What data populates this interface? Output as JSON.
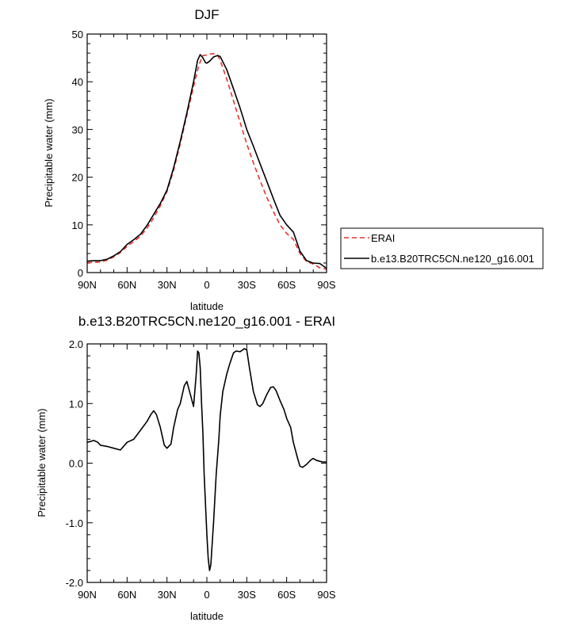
{
  "chart_data": [
    {
      "type": "line",
      "title": "DJF",
      "xlabel": "latitude",
      "ylabel": "Precipitable water (mm)",
      "xlim": [
        90,
        -90
      ],
      "ylim": [
        0,
        50
      ],
      "xticks": [
        90,
        60,
        30,
        0,
        -30,
        -60,
        -90
      ],
      "xtick_labels": [
        "90N",
        "60N",
        "30N",
        "0",
        "30S",
        "60S",
        "90S"
      ],
      "yticks": [
        0,
        10,
        20,
        30,
        40,
        50
      ],
      "ytick_labels": [
        "0",
        "10",
        "20",
        "30",
        "40",
        "50"
      ],
      "legend_position": "right",
      "series": [
        {
          "name": "ERAI",
          "color": "#e8322f",
          "dash": "dashed",
          "x": [
            90,
            80,
            75,
            70,
            65,
            60,
            55,
            50,
            45,
            40,
            35,
            30,
            25,
            20,
            15,
            10,
            6,
            3,
            0,
            -2,
            -5,
            -8,
            -10,
            -15,
            -20,
            -25,
            -30,
            -35,
            -40,
            -45,
            -50,
            -55,
            -60,
            -65,
            -70,
            -75,
            -80,
            -85,
            -90
          ],
          "y": [
            2.1,
            2.2,
            2.6,
            3.3,
            4.2,
            5.5,
            6.5,
            7.6,
            9.3,
            11.5,
            14.0,
            17.0,
            21.5,
            27.0,
            33.0,
            39.0,
            43.5,
            45.5,
            45.6,
            45.8,
            45.9,
            45.6,
            44.5,
            40.5,
            36.0,
            31.5,
            27.0,
            23.0,
            19.3,
            15.8,
            12.8,
            10.0,
            8.2,
            7.0,
            4.0,
            2.3,
            1.8,
            1.0,
            0.7
          ]
        },
        {
          "name": "b.e13.B20TRC5CN.ne120_g16.001",
          "color": "#000000",
          "dash": "solid",
          "x": [
            90,
            85,
            80,
            75,
            70,
            65,
            60,
            55,
            50,
            45,
            40,
            35,
            30,
            25,
            20,
            15,
            10,
            7,
            5,
            3,
            1,
            0,
            -2,
            -5,
            -8,
            -10,
            -15,
            -20,
            -25,
            -30,
            -35,
            -40,
            -45,
            -50,
            -55,
            -60,
            -65,
            -70,
            -75,
            -80,
            -85,
            -90
          ],
          "y": [
            2.4,
            2.5,
            2.5,
            2.8,
            3.5,
            4.4,
            5.9,
            6.9,
            8.0,
            9.9,
            12.2,
            14.5,
            17.3,
            22.0,
            27.5,
            33.5,
            40.0,
            44.5,
            45.7,
            45.0,
            44.0,
            43.9,
            44.3,
            45.2,
            45.5,
            45.3,
            42.5,
            38.5,
            34.5,
            30.0,
            26.5,
            22.8,
            19.2,
            15.5,
            12.0,
            10.0,
            8.5,
            4.5,
            2.5,
            2.0,
            1.9,
            0.9
          ]
        }
      ]
    },
    {
      "type": "line",
      "title": "b.e13.B20TRC5CN.ne120_g16.001 - ERAI",
      "xlabel": "latitude",
      "ylabel": "Precipitable water (mm)",
      "xlim": [
        90,
        -90
      ],
      "ylim": [
        -2.0,
        2.0
      ],
      "xticks": [
        90,
        60,
        30,
        0,
        -30,
        -60,
        -90
      ],
      "xtick_labels": [
        "90N",
        "60N",
        "30N",
        "0",
        "30S",
        "60S",
        "90S"
      ],
      "yticks": [
        2.0,
        1.0,
        0.0,
        -1.0,
        -2.0
      ],
      "ytick_labels": [
        "2.0",
        "1.0",
        "0.0",
        "-1.0",
        "-2.0"
      ],
      "series": [
        {
          "color": "#000000",
          "dash": "solid",
          "x": [
            90,
            85,
            82,
            80,
            75,
            70,
            65,
            60,
            55,
            50,
            45,
            42,
            40,
            38,
            35,
            32,
            30,
            27,
            25,
            22,
            20,
            17,
            15,
            13,
            10,
            8,
            7,
            6,
            5,
            4,
            3,
            2,
            0,
            -1,
            -2,
            -3,
            -5,
            -7,
            -9,
            -10,
            -12,
            -15,
            -17,
            -20,
            -22,
            -25,
            -27,
            -28,
            -30,
            -32,
            -35,
            -38,
            -40,
            -42,
            -45,
            -48,
            -50,
            -52,
            -55,
            -58,
            -60,
            -63,
            -65,
            -68,
            -70,
            -72,
            -75,
            -78,
            -80,
            -82,
            -85,
            -87,
            -90
          ],
          "y": [
            0.35,
            0.38,
            0.35,
            0.3,
            0.28,
            0.25,
            0.22,
            0.35,
            0.4,
            0.55,
            0.7,
            0.82,
            0.88,
            0.82,
            0.6,
            0.3,
            0.25,
            0.32,
            0.6,
            0.9,
            1.0,
            1.3,
            1.37,
            1.2,
            0.95,
            1.5,
            1.88,
            1.85,
            1.6,
            1.0,
            0.5,
            -0.2,
            -1.2,
            -1.6,
            -1.8,
            -1.7,
            -1.0,
            -0.2,
            0.4,
            0.8,
            1.2,
            1.5,
            1.65,
            1.85,
            1.88,
            1.87,
            1.9,
            1.92,
            1.9,
            1.6,
            1.2,
            0.98,
            0.95,
            1.0,
            1.15,
            1.27,
            1.28,
            1.22,
            1.05,
            0.9,
            0.75,
            0.6,
            0.35,
            0.1,
            -0.05,
            -0.07,
            -0.02,
            0.05,
            0.08,
            0.05,
            0.03,
            0.02,
            0.02
          ]
        }
      ]
    }
  ]
}
